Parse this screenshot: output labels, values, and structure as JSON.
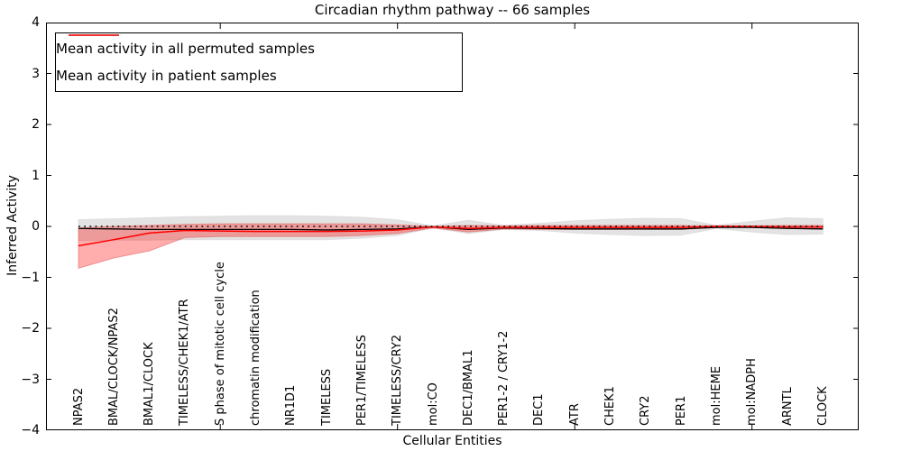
{
  "title": "Circadian rhythm pathway -- 66 samples",
  "axes": {
    "ylabel": "Inferred Activity",
    "xlabel": "Cellular Entities",
    "ytick_labels": [
      "4",
      "3",
      "2",
      "1",
      "0",
      "−1",
      "−2",
      "−3",
      "−4"
    ],
    "ytick_values": [
      4,
      3,
      2,
      1,
      0,
      -1,
      -2,
      -3,
      -4
    ]
  },
  "legend": {
    "entries": [
      {
        "label": "Mean activity in all permuted samples",
        "color": "#000000"
      },
      {
        "label": "Mean activity in patient samples",
        "color": "#ff0000"
      }
    ]
  },
  "chart_data": {
    "type": "line",
    "title": "Circadian rhythm pathway -- 66 samples",
    "xlabel": "Cellular Entities",
    "ylabel": "Inferred Activity",
    "ylim": [
      -4,
      4
    ],
    "grid": false,
    "legend_position": "upper left",
    "zero_line": {
      "y": 0,
      "style": "dotted",
      "color": "#000000"
    },
    "x_major_tick_indices": [
      4,
      9,
      14,
      19
    ],
    "categories": [
      "NPAS2",
      "BMAL/CLOCK/NPAS2",
      "BMAL1/CLOCK",
      "TIMELESS/CHEK1/ATR",
      "S phase of mitotic cell cycle",
      "chromatin modification",
      "NR1D1",
      "TIMELESS",
      "PER1/TIMELESS",
      "TIMELESS/CRY2",
      "mol:CO",
      "DEC1/BMAL1",
      "PER1-2 / CRY1-2",
      "DEC1",
      "ATR",
      "CHEK1",
      "CRY2",
      "PER1",
      "mol:HEME",
      "mol:NADPH",
      "ARNTL",
      "CLOCK"
    ],
    "series": [
      {
        "name": "Mean activity in all permuted samples",
        "color": "#000000",
        "band_color": "#e0e0e0",
        "band_edge_color": "#d2d2d2",
        "band_opacity": 0.9,
        "values": [
          -0.04,
          -0.05,
          -0.06,
          -0.06,
          -0.06,
          -0.06,
          -0.06,
          -0.07,
          -0.06,
          -0.05,
          -0.01,
          -0.06,
          -0.03,
          -0.04,
          -0.05,
          -0.05,
          -0.05,
          -0.05,
          -0.02,
          -0.02,
          -0.04,
          -0.05
        ],
        "band_upper": [
          0.13,
          0.15,
          0.17,
          0.19,
          0.2,
          0.21,
          0.21,
          0.2,
          0.18,
          0.13,
          0.01,
          0.12,
          0.02,
          0.06,
          0.11,
          0.14,
          0.16,
          0.15,
          0.02,
          0.1,
          0.17,
          0.15
        ],
        "band_lower": [
          -0.28,
          -0.27,
          -0.27,
          -0.26,
          -0.26,
          -0.26,
          -0.26,
          -0.26,
          -0.23,
          -0.18,
          -0.03,
          -0.14,
          -0.06,
          -0.08,
          -0.13,
          -0.16,
          -0.18,
          -0.17,
          -0.04,
          -0.11,
          -0.16,
          -0.15
        ]
      },
      {
        "name": "Mean activity in patient samples",
        "color": "#ff0000",
        "band_color": "#ff0000",
        "band_edge_color": "#e06060",
        "band_opacity": 0.32,
        "values": [
          -0.38,
          -0.26,
          -0.13,
          -0.08,
          -0.09,
          -0.1,
          -0.1,
          -0.1,
          -0.09,
          -0.07,
          -0.01,
          -0.04,
          -0.02,
          -0.02,
          -0.02,
          -0.02,
          -0.02,
          -0.02,
          0.0,
          0.0,
          -0.01,
          -0.01
        ],
        "band_upper": [
          -0.03,
          0.0,
          0.02,
          0.04,
          0.05,
          0.05,
          0.05,
          0.05,
          0.05,
          0.03,
          0.0,
          0.02,
          0.01,
          0.02,
          0.02,
          0.02,
          0.02,
          0.02,
          0.01,
          0.01,
          0.02,
          0.02
        ],
        "band_lower": [
          -0.82,
          -0.62,
          -0.48,
          -0.22,
          -0.2,
          -0.2,
          -0.2,
          -0.2,
          -0.18,
          -0.14,
          -0.03,
          -0.11,
          -0.05,
          -0.06,
          -0.06,
          -0.06,
          -0.06,
          -0.06,
          -0.02,
          -0.02,
          -0.04,
          -0.04
        ]
      }
    ]
  }
}
